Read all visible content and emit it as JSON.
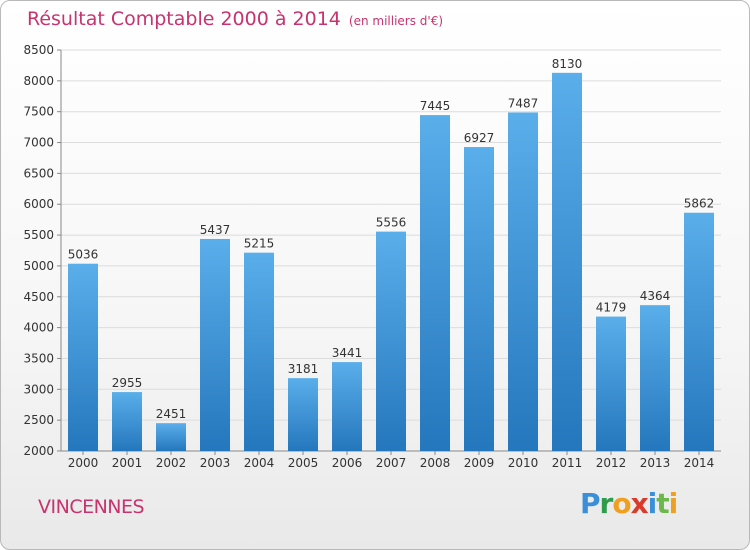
{
  "chart_data": {
    "type": "bar",
    "title": "Résultat Comptable 2000 à 2014",
    "unit": "(en milliers d'€)",
    "categories": [
      "2000",
      "2001",
      "2002",
      "2003",
      "2004",
      "2005",
      "2006",
      "2007",
      "2008",
      "2009",
      "2010",
      "2011",
      "2012",
      "2013",
      "2014"
    ],
    "values": [
      5036,
      2955,
      2451,
      5437,
      5215,
      3181,
      3441,
      5556,
      7445,
      6927,
      7487,
      8130,
      4179,
      4364,
      5862
    ],
    "ylim": [
      2000,
      8500
    ],
    "yticks": [
      2000,
      2500,
      3000,
      3500,
      4000,
      4500,
      5000,
      5500,
      6000,
      6500,
      7000,
      7500,
      8000,
      8500
    ],
    "grid": true,
    "bar_color": "#4a9fe0"
  },
  "footer": {
    "city": "VINCENNES",
    "logo_letters": [
      {
        "ch": "P",
        "color": "#3a8fd8"
      },
      {
        "ch": "r",
        "color": "#2e9c4a"
      },
      {
        "ch": "o",
        "color": "#f0a020"
      },
      {
        "ch": "x",
        "color": "#d93a2a"
      },
      {
        "ch": "i",
        "color": "#3a8fd8"
      },
      {
        "ch": "t",
        "color": "#6cb84a"
      },
      {
        "ch": "i",
        "color": "#f0a020"
      }
    ]
  }
}
